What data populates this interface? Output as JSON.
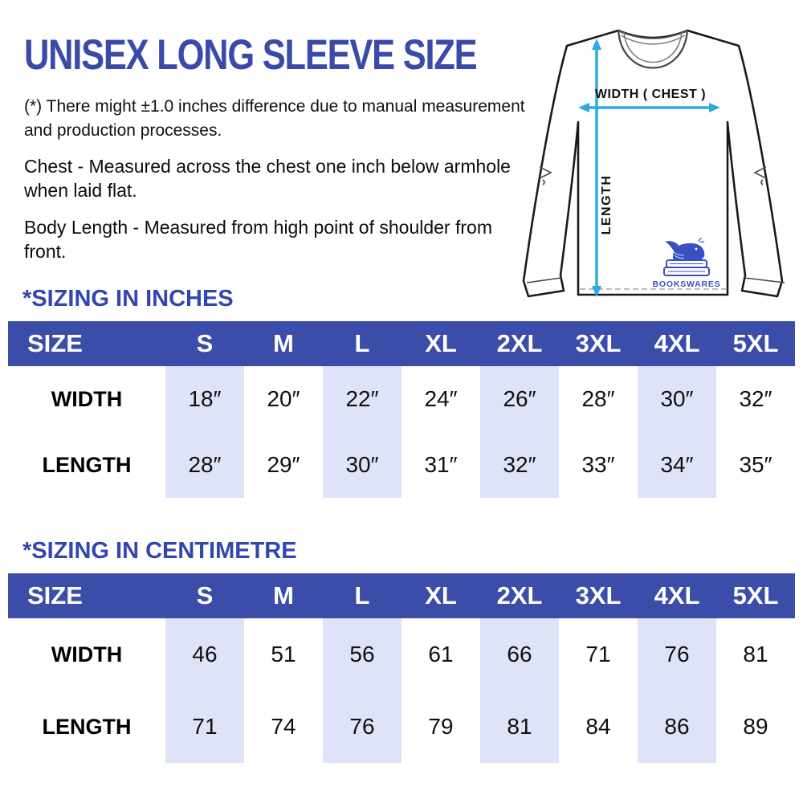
{
  "page": {
    "title": "UNISEX LONG SLEEVE SIZE",
    "disclaimer": "(*) There might ±1.0 inches difference due to manual measurement and production processes.",
    "chest_note": "Chest - Measured across the chest one inch below armhole when laid flat.",
    "length_note": "Body Length - Measured from high point of shoulder from front."
  },
  "diagram": {
    "width_label": "WIDTH ( CHEST )",
    "length_label": "LENGTH",
    "brand": "BOOKSWARES",
    "arrow_color": "#2CA9E1",
    "logo_color": "#3B4FC5"
  },
  "colors": {
    "title_blue": "#3A4AA9",
    "heading_blue": "#3246B0",
    "table_header_bg": "#3B4DA9",
    "stripe_lavender": "#DEE3F8"
  },
  "tables": [
    {
      "heading": "*SIZING IN INCHES",
      "columns": [
        "SIZE",
        "S",
        "M",
        "L",
        "XL",
        "2XL",
        "3XL",
        "4XL",
        "5XL"
      ],
      "rows": [
        {
          "label": "WIDTH",
          "values": [
            "18″",
            "20″",
            "22″",
            "24″",
            "26″",
            "28″",
            "30″",
            "32″"
          ]
        },
        {
          "label": "LENGTH",
          "values": [
            "28″",
            "29″",
            "30″",
            "31″",
            "32″",
            "33″",
            "34″",
            "35″"
          ]
        }
      ]
    },
    {
      "heading": "*SIZING IN CENTIMETRE",
      "columns": [
        "SIZE",
        "S",
        "M",
        "L",
        "XL",
        "2XL",
        "3XL",
        "4XL",
        "5XL"
      ],
      "rows": [
        {
          "label": "WIDTH",
          "values": [
            "46",
            "51",
            "56",
            "61",
            "66",
            "71",
            "76",
            "81"
          ]
        },
        {
          "label": "LENGTH",
          "values": [
            "71",
            "74",
            "76",
            "79",
            "81",
            "84",
            "86",
            "89"
          ]
        }
      ]
    }
  ]
}
